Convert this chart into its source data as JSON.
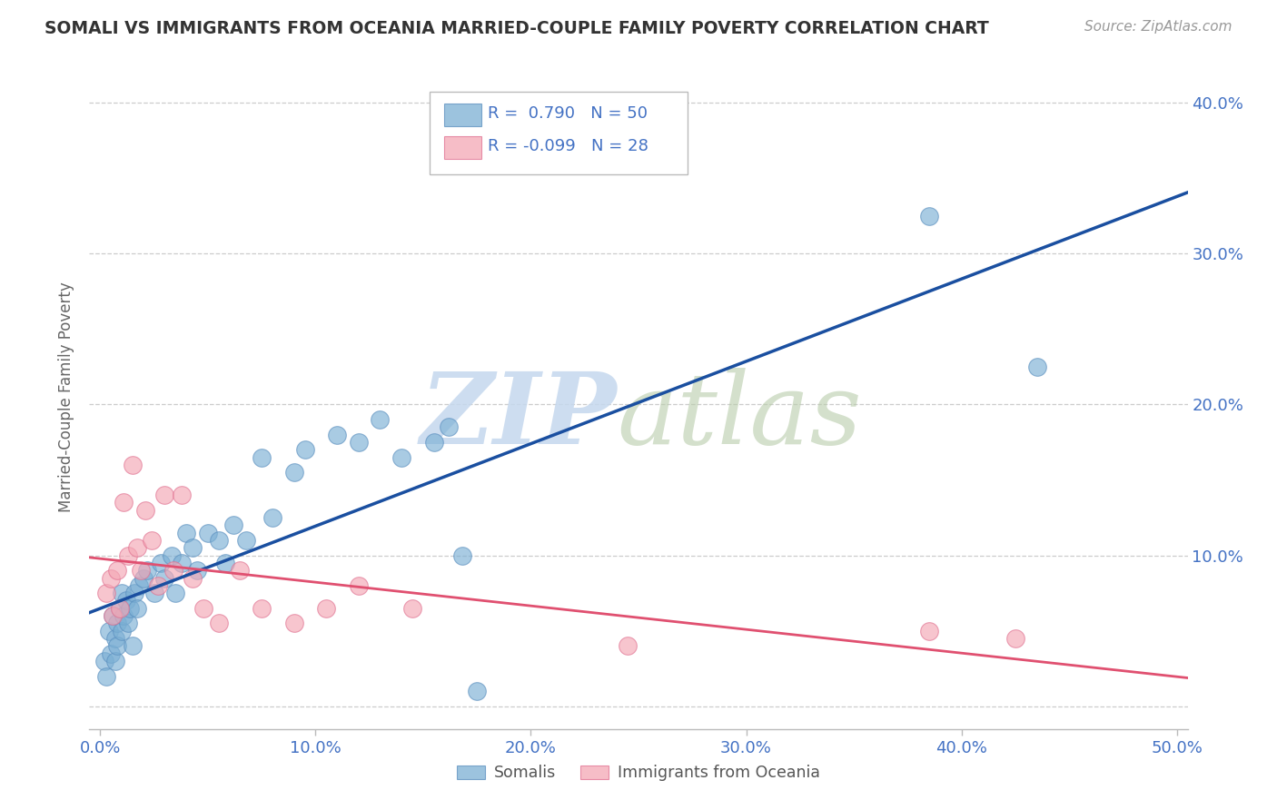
{
  "title": "SOMALI VS IMMIGRANTS FROM OCEANIA MARRIED-COUPLE FAMILY POVERTY CORRELATION CHART",
  "source": "Source: ZipAtlas.com",
  "tick_color": "#4472C4",
  "ylabel": "Married-Couple Family Poverty",
  "xlim": [
    -0.005,
    0.505
  ],
  "ylim": [
    -0.015,
    0.425
  ],
  "xticks": [
    0.0,
    0.1,
    0.2,
    0.3,
    0.4,
    0.5
  ],
  "xticklabels": [
    "0.0%",
    "10.0%",
    "20.0%",
    "30.0%",
    "40.0%",
    "50.0%"
  ],
  "yticks": [
    0.0,
    0.1,
    0.2,
    0.3,
    0.4
  ],
  "yticklabels": [
    "",
    "10.0%",
    "20.0%",
    "30.0%",
    "40.0%"
  ],
  "somali_R": 0.79,
  "somali_N": 50,
  "oceania_R": -0.099,
  "oceania_N": 28,
  "somali_color": "#7BAFD4",
  "oceania_color": "#F4A7B5",
  "somali_edge_color": "#5B8FBF",
  "oceania_edge_color": "#E07090",
  "trendline_somali_color": "#1A4FA0",
  "trendline_oceania_color": "#E05070",
  "background_color": "#FFFFFF",
  "watermark_color": "#C5D8EE",
  "legend_label_somali": "Somalis",
  "legend_label_oceania": "Immigrants from Oceania",
  "somali_x": [
    0.002,
    0.003,
    0.004,
    0.005,
    0.006,
    0.007,
    0.007,
    0.008,
    0.008,
    0.009,
    0.01,
    0.01,
    0.011,
    0.012,
    0.013,
    0.014,
    0.015,
    0.016,
    0.017,
    0.018,
    0.02,
    0.022,
    0.025,
    0.028,
    0.03,
    0.033,
    0.035,
    0.038,
    0.04,
    0.043,
    0.045,
    0.05,
    0.055,
    0.058,
    0.062,
    0.068,
    0.075,
    0.08,
    0.09,
    0.095,
    0.11,
    0.12,
    0.13,
    0.14,
    0.155,
    0.162,
    0.168,
    0.175,
    0.385,
    0.435
  ],
  "somali_y": [
    0.03,
    0.02,
    0.05,
    0.035,
    0.06,
    0.03,
    0.045,
    0.055,
    0.04,
    0.065,
    0.05,
    0.075,
    0.06,
    0.07,
    0.055,
    0.065,
    0.04,
    0.075,
    0.065,
    0.08,
    0.085,
    0.09,
    0.075,
    0.095,
    0.085,
    0.1,
    0.075,
    0.095,
    0.115,
    0.105,
    0.09,
    0.115,
    0.11,
    0.095,
    0.12,
    0.11,
    0.165,
    0.125,
    0.155,
    0.17,
    0.18,
    0.175,
    0.19,
    0.165,
    0.175,
    0.185,
    0.1,
    0.01,
    0.325,
    0.225
  ],
  "oceania_x": [
    0.003,
    0.005,
    0.006,
    0.008,
    0.009,
    0.011,
    0.013,
    0.015,
    0.017,
    0.019,
    0.021,
    0.024,
    0.027,
    0.03,
    0.034,
    0.038,
    0.043,
    0.048,
    0.055,
    0.065,
    0.075,
    0.09,
    0.105,
    0.12,
    0.145,
    0.245,
    0.385,
    0.425
  ],
  "oceania_y": [
    0.075,
    0.085,
    0.06,
    0.09,
    0.065,
    0.135,
    0.1,
    0.16,
    0.105,
    0.09,
    0.13,
    0.11,
    0.08,
    0.14,
    0.09,
    0.14,
    0.085,
    0.065,
    0.055,
    0.09,
    0.065,
    0.055,
    0.065,
    0.08,
    0.065,
    0.04,
    0.05,
    0.045
  ]
}
